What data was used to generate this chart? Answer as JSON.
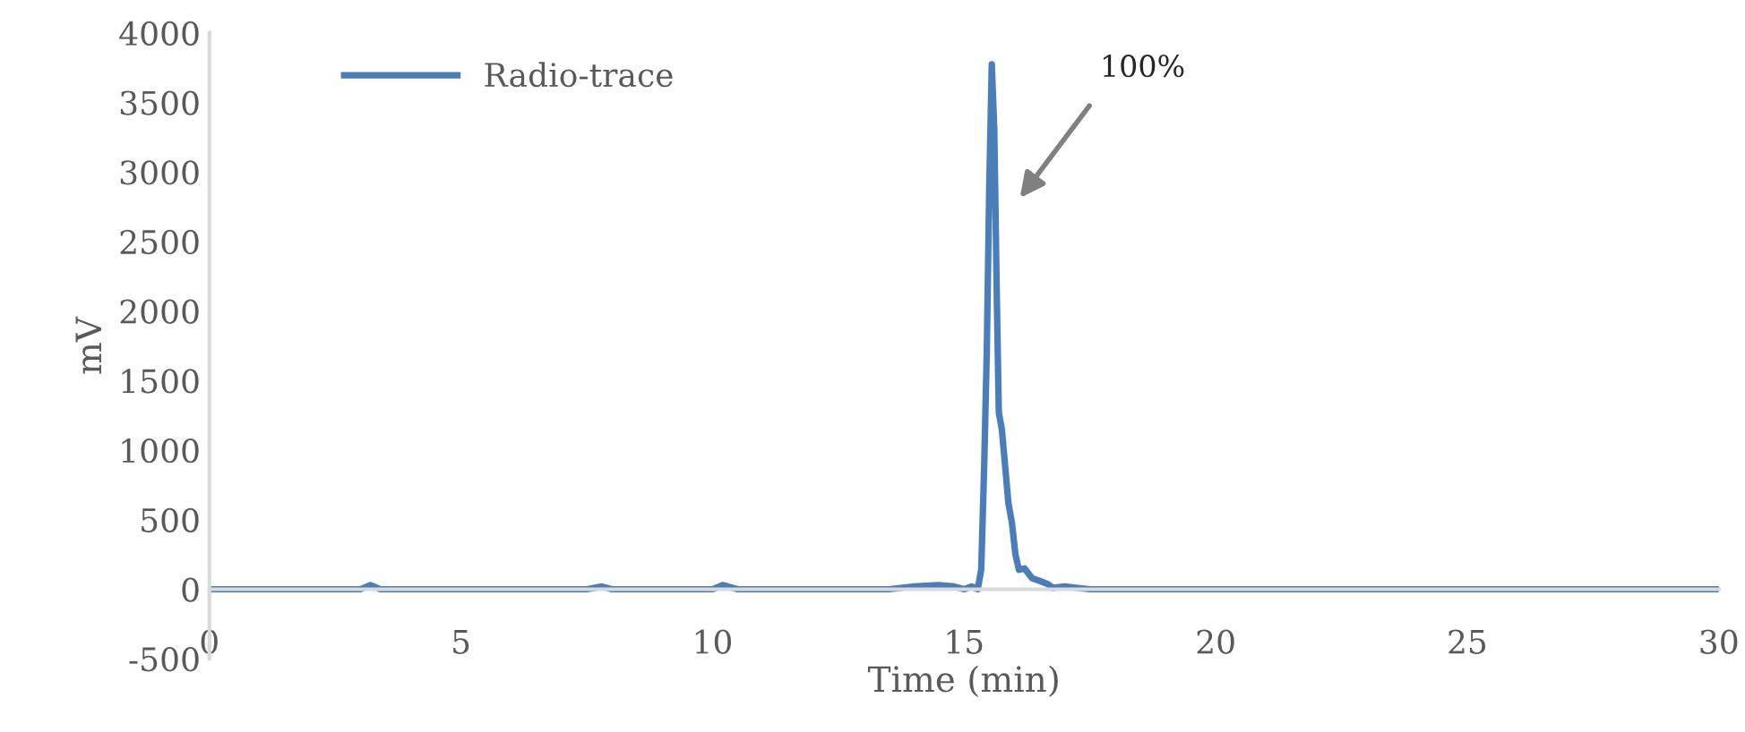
{
  "chart_data": {
    "type": "line",
    "xlabel": "Time (min)",
    "ylabel": "mV",
    "series": [
      {
        "name": "Radio-trace",
        "color": "#4a7ebb",
        "x": [
          0,
          0.5,
          1,
          1.5,
          2,
          2.5,
          3,
          3.2,
          3.4,
          4,
          4.5,
          5,
          5.5,
          6,
          6.5,
          7,
          7.5,
          7.8,
          8,
          8.5,
          9,
          9.5,
          10,
          10.2,
          10.5,
          11,
          11.5,
          12,
          12.5,
          13,
          13.5,
          14,
          14.5,
          14.8,
          15,
          15.15,
          15.27,
          15.34,
          15.4,
          15.45,
          15.5,
          15.55,
          15.6,
          15.65,
          15.69,
          15.75,
          15.8,
          15.88,
          15.95,
          16.02,
          16.09,
          16.2,
          16.35,
          16.5,
          16.65,
          16.77,
          17,
          17.5,
          18,
          18.5,
          19,
          20,
          21,
          22,
          23,
          24,
          25,
          26,
          27,
          28,
          29,
          29.5,
          30
        ],
        "values": [
          0,
          0,
          0,
          0,
          0,
          0,
          0,
          30,
          0,
          0,
          0,
          0,
          0,
          0,
          0,
          0,
          0,
          20,
          0,
          0,
          0,
          0,
          0,
          30,
          0,
          0,
          0,
          0,
          0,
          0,
          0,
          20,
          30,
          20,
          0,
          20,
          0,
          140,
          900,
          1700,
          2900,
          3775,
          3300,
          2100,
          1270,
          1150,
          950,
          620,
          480,
          250,
          140,
          150,
          80,
          60,
          40,
          10,
          20,
          0,
          0,
          0,
          0,
          0,
          0,
          0,
          0,
          0,
          0,
          0,
          0,
          0,
          0,
          0,
          0
        ]
      }
    ],
    "xlim": [
      0,
      30
    ],
    "xticks": [
      0,
      5,
      10,
      15,
      20,
      25,
      30
    ],
    "ylim": [
      -500,
      4000
    ],
    "yticks": [
      -500,
      0,
      500,
      1000,
      1500,
      2000,
      2500,
      3000,
      3500,
      4000
    ],
    "grid": false,
    "legend": "top left",
    "marker": "none",
    "line_style": "solid",
    "annotations": [
      "100%"
    ]
  }
}
